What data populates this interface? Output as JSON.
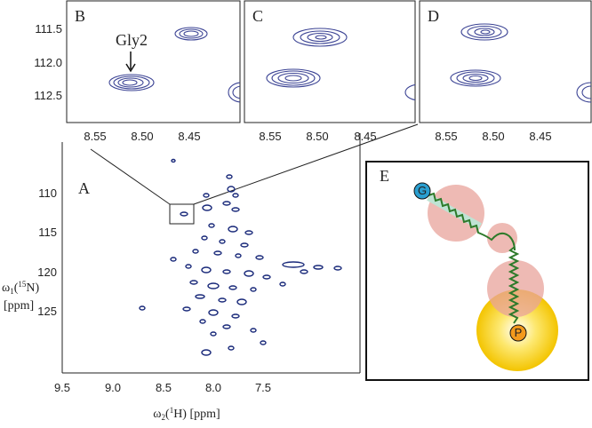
{
  "panels": {
    "b": {
      "label": "B",
      "annotation": "Gly2",
      "x_ticks": [
        "8.55",
        "8.50",
        "8.45"
      ]
    },
    "c": {
      "label": "C",
      "x_ticks": [
        "8.55",
        "8.50",
        "8.45"
      ]
    },
    "d": {
      "label": "D",
      "x_ticks": [
        "8.55",
        "8.50",
        "8.45"
      ]
    },
    "top_y_ticks": [
      "111.5",
      "112.0",
      "112.5"
    ],
    "a": {
      "label": "A",
      "y_ticks": [
        "110",
        "115",
        "120",
        "125"
      ],
      "x_ticks": [
        "9.5",
        "9.0",
        "8.5",
        "8.0",
        "7.5"
      ],
      "x_title": {
        "symbol": "ω",
        "sub": "2",
        "open": "(",
        "sup": "1",
        "rest": "H) [ppm]"
      },
      "y_title": {
        "symbol": "ω",
        "sub": "1",
        "open": "(",
        "sup": "15",
        "rest": "N)",
        "unit": "[ppm]"
      }
    },
    "e": {
      "label": "E",
      "n_term": "G",
      "c_term": "P"
    }
  }
}
